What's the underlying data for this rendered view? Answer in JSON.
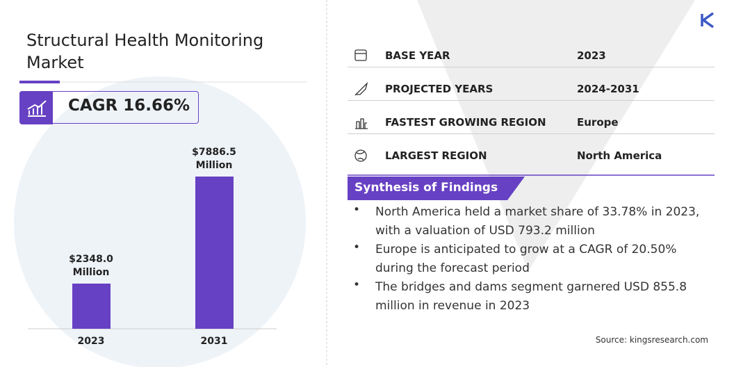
{
  "title": "Structural Health Monitoring Market",
  "cagr": "CAGR 16.66%",
  "chart_data": {
    "type": "bar",
    "categories": [
      "2023",
      "2031"
    ],
    "values": [
      2348.0,
      7886.5
    ],
    "value_labels": [
      "$2348.0 Million",
      "$7886.5 Million"
    ],
    "color": "#6741c3"
  },
  "table": {
    "rows": [
      [
        "BASE YEAR",
        "2023"
      ],
      [
        "PROJECTED YEARS",
        "2024-2031"
      ],
      [
        "FASTEST GROWING REGION",
        "Europe"
      ],
      [
        "LARGEST REGION",
        "North America"
      ]
    ]
  },
  "findings": {
    "title": "Synthesis of Findings",
    "items": [
      "North America held a market share of 33.78% in 2023, with a valuation of USD 793.2 million",
      "Europe is anticipated to grow at a CAGR of 20.50% during the forecast period",
      "The bridges and dams segment garnered USD 855.8 million in revenue in 2023"
    ]
  },
  "source": "Source:  kingsresearch.com"
}
